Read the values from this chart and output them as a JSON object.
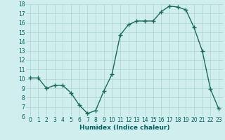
{
  "x": [
    0,
    1,
    2,
    3,
    4,
    5,
    6,
    7,
    8,
    9,
    10,
    11,
    12,
    13,
    14,
    15,
    16,
    17,
    18,
    19,
    20,
    21,
    22,
    23
  ],
  "y": [
    10.1,
    10.1,
    9.0,
    9.3,
    9.3,
    8.5,
    7.2,
    6.3,
    6.6,
    8.7,
    10.5,
    14.7,
    15.8,
    16.2,
    16.2,
    16.2,
    17.2,
    17.8,
    17.7,
    17.4,
    15.5,
    13.0,
    8.9,
    6.8
  ],
  "xlabel": "Humidex (Indice chaleur)",
  "ylim": [
    6,
    18
  ],
  "xlim_min": -0.5,
  "xlim_max": 23.5,
  "yticks": [
    6,
    7,
    8,
    9,
    10,
    11,
    12,
    13,
    14,
    15,
    16,
    17,
    18
  ],
  "xticks": [
    0,
    1,
    2,
    3,
    4,
    5,
    6,
    7,
    8,
    9,
    10,
    11,
    12,
    13,
    14,
    15,
    16,
    17,
    18,
    19,
    20,
    21,
    22,
    23
  ],
  "line_color": "#1a6b5a",
  "marker_color": "#1a6b5a",
  "bg_color": "#d0eeee",
  "grid_color": "#b0d8d8",
  "xlabel_fontsize": 6.5,
  "tick_fontsize": 5.5
}
